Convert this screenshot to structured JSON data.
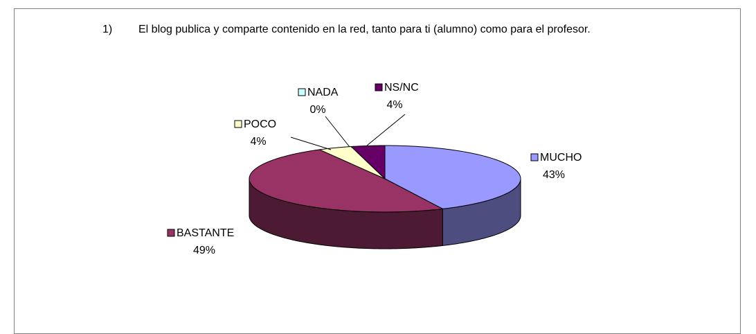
{
  "chart_data": {
    "type": "pie3d",
    "title_number": "1)",
    "title": "El blog publica y comparte contenido en la red, tanto para ti (alumno) como para el profesor.",
    "categories": [
      "MUCHO",
      "BASTANTE",
      "POCO",
      "NADA",
      "NS/NC"
    ],
    "values": [
      43,
      49,
      4,
      0,
      4
    ],
    "value_labels": [
      "43%",
      "49%",
      "4%",
      "0%",
      "4%"
    ],
    "colors": [
      "#9999ff",
      "#993366",
      "#ffffcc",
      "#ccffff",
      "#660066"
    ]
  }
}
